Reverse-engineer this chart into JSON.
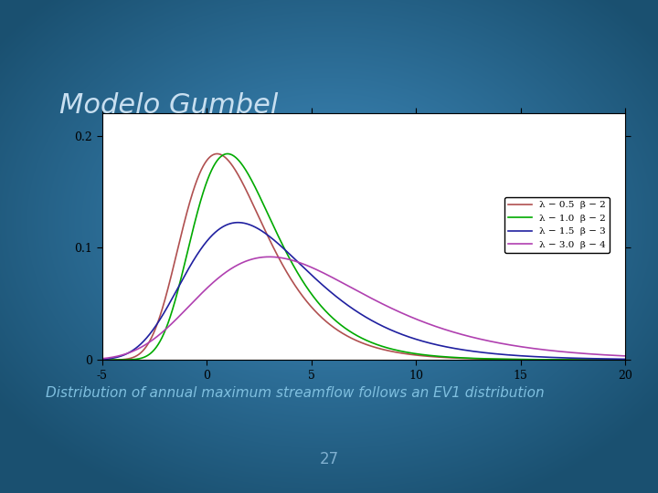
{
  "title": "Modelo Gumbel",
  "subtitle": "Distribution of annual maximum streamflow follows an EV1 distribution",
  "page_number": "27",
  "bg_dark": "#1a5070",
  "bg_mid": "#3080b0",
  "plot_bg_color": "#ffffff",
  "title_color": "#c8dff0",
  "subtitle_color": "#80c0e0",
  "page_number_color": "#80b0d0",
  "title_fontsize": 22,
  "subtitle_fontsize": 11,
  "curves": [
    {
      "lambda": 0.5,
      "beta": 2,
      "color": "#b05050",
      "label": "λ − 0.5  β − 2"
    },
    {
      "lambda": 1.0,
      "beta": 2,
      "color": "#00aa00",
      "label": "λ − 1.0  β − 2"
    },
    {
      "lambda": 1.5,
      "beta": 3,
      "color": "#2020a0",
      "label": "λ − 1.5  β − 3"
    },
    {
      "lambda": 3.0,
      "beta": 4,
      "color": "#b040b0",
      "label": "λ − 3.0  β − 4"
    }
  ],
  "xlim": [
    -5,
    20
  ],
  "ylim": [
    0,
    0.22
  ],
  "xticks": [
    -5,
    0,
    5,
    10,
    15,
    20
  ],
  "yticks": [
    0,
    0.1,
    0.2
  ],
  "ytick_labels": [
    "0",
    "0.1",
    "0.2"
  ]
}
